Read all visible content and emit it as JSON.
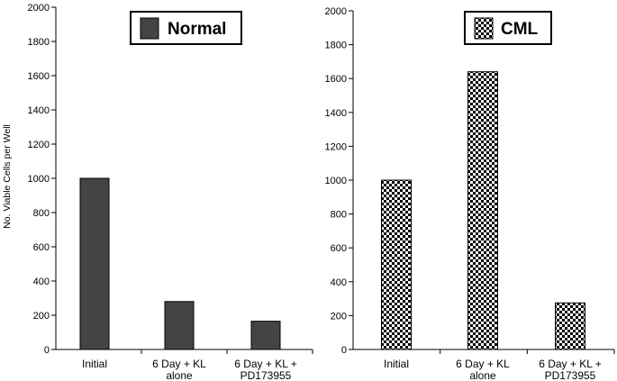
{
  "chart_data": [
    {
      "type": "bar",
      "title": "Normal",
      "legend": {
        "label": "Normal",
        "pattern": "solid",
        "color": "#444444"
      },
      "categories": [
        [
          "Initial"
        ],
        [
          "6 Day + KL",
          "alone"
        ],
        [
          "6 Day + KL +",
          "PD173955"
        ]
      ],
      "values": [
        1000,
        280,
        165
      ],
      "ylabel": "No. Viable Cells per Well",
      "xlabel": "",
      "ylim": [
        0,
        2000
      ],
      "yticks": [
        0,
        200,
        400,
        600,
        800,
        1000,
        1200,
        1400,
        1600,
        1800,
        2000
      ],
      "grid": false
    },
    {
      "type": "bar",
      "title": "CML",
      "legend": {
        "label": "CML",
        "pattern": "checkerboard",
        "color": "#000000"
      },
      "categories": [
        [
          "Initial"
        ],
        [
          "6 Day + KL",
          "alone"
        ],
        [
          "6 Day + KL +",
          "PD173955"
        ]
      ],
      "values": [
        1000,
        1640,
        275
      ],
      "ylabel": "",
      "xlabel": "",
      "ylim": [
        0,
        2000
      ],
      "yticks": [
        0,
        200,
        400,
        600,
        800,
        1000,
        1200,
        1400,
        1600,
        1800,
        2000
      ],
      "grid": false
    }
  ]
}
